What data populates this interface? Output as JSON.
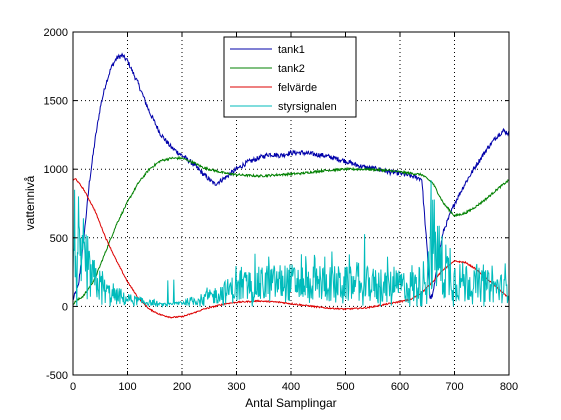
{
  "chart_data": {
    "type": "line",
    "title": "",
    "xlabel": "Antal Samplingar",
    "ylabel": "vattennivå",
    "xlim": [
      0,
      800
    ],
    "ylim": [
      -500,
      2000
    ],
    "xticks": [
      "0",
      "100",
      "200",
      "300",
      "400",
      "500",
      "600",
      "700",
      "800"
    ],
    "yticks": [
      "-500",
      "0",
      "500",
      "1000",
      "1500",
      "2000"
    ],
    "grid": true,
    "legend_position": "top-center",
    "series": [
      {
        "name": "tank1",
        "color": "#0000aa",
        "noise": 18,
        "x": [
          0,
          10,
          20,
          30,
          40,
          50,
          60,
          70,
          80,
          90,
          100,
          120,
          140,
          160,
          180,
          200,
          220,
          240,
          260,
          280,
          300,
          320,
          340,
          360,
          380,
          400,
          420,
          440,
          460,
          480,
          500,
          520,
          540,
          560,
          580,
          600,
          620,
          640,
          650,
          655,
          660,
          665,
          670,
          680,
          700,
          720,
          740,
          760,
          780,
          790,
          800
        ],
        "values": [
          50,
          150,
          500,
          900,
          1200,
          1450,
          1620,
          1740,
          1810,
          1830,
          1790,
          1620,
          1420,
          1260,
          1160,
          1100,
          1040,
          960,
          890,
          940,
          1000,
          1050,
          1080,
          1110,
          1100,
          1120,
          1120,
          1110,
          1100,
          1080,
          1060,
          1030,
          1010,
          1000,
          980,
          970,
          950,
          930,
          400,
          60,
          80,
          200,
          350,
          550,
          750,
          900,
          1030,
          1150,
          1250,
          1280,
          1260
        ]
      },
      {
        "name": "tank2",
        "color": "#008000",
        "noise": 8,
        "x": [
          0,
          20,
          40,
          60,
          80,
          100,
          120,
          140,
          160,
          180,
          200,
          220,
          240,
          260,
          280,
          300,
          340,
          380,
          420,
          460,
          500,
          540,
          580,
          620,
          640,
          660,
          680,
          700,
          720,
          740,
          760,
          780,
          800
        ],
        "values": [
          20,
          80,
          200,
          400,
          600,
          760,
          900,
          1000,
          1060,
          1080,
          1080,
          1050,
          1010,
          990,
          970,
          960,
          950,
          960,
          970,
          990,
          1000,
          1000,
          990,
          970,
          960,
          900,
          750,
          660,
          680,
          730,
          790,
          860,
          920
        ]
      },
      {
        "name": "felvärde",
        "color": "#dd0000",
        "noise": 5,
        "x": [
          0,
          5,
          20,
          40,
          60,
          80,
          100,
          120,
          140,
          160,
          180,
          200,
          220,
          240,
          260,
          280,
          300,
          340,
          380,
          420,
          460,
          500,
          540,
          580,
          620,
          640,
          660,
          680,
          700,
          720,
          740,
          760,
          780,
          800
        ],
        "values": [
          920,
          930,
          850,
          700,
          500,
          330,
          180,
          60,
          -20,
          -60,
          -80,
          -75,
          -50,
          -20,
          0,
          20,
          30,
          40,
          30,
          10,
          -10,
          -20,
          -10,
          20,
          50,
          100,
          180,
          270,
          330,
          320,
          270,
          200,
          130,
          60
        ]
      },
      {
        "name": "styrsignalen",
        "color": "#00bbbb",
        "noise": 0,
        "spiky": true,
        "x": [
          0,
          20,
          40,
          60,
          80,
          100,
          120,
          140,
          160,
          180,
          200,
          220,
          240,
          260,
          280,
          300,
          340,
          380,
          420,
          460,
          500,
          540,
          580,
          620,
          640,
          650,
          660,
          680,
          700,
          720,
          740,
          760,
          780,
          800
        ],
        "values": [
          300,
          200,
          140,
          80,
          50,
          40,
          30,
          20,
          10,
          10,
          20,
          30,
          40,
          60,
          80,
          100,
          120,
          130,
          130,
          130,
          120,
          120,
          110,
          110,
          120,
          200,
          350,
          200,
          150,
          130,
          120,
          110,
          100,
          100
        ]
      }
    ]
  }
}
